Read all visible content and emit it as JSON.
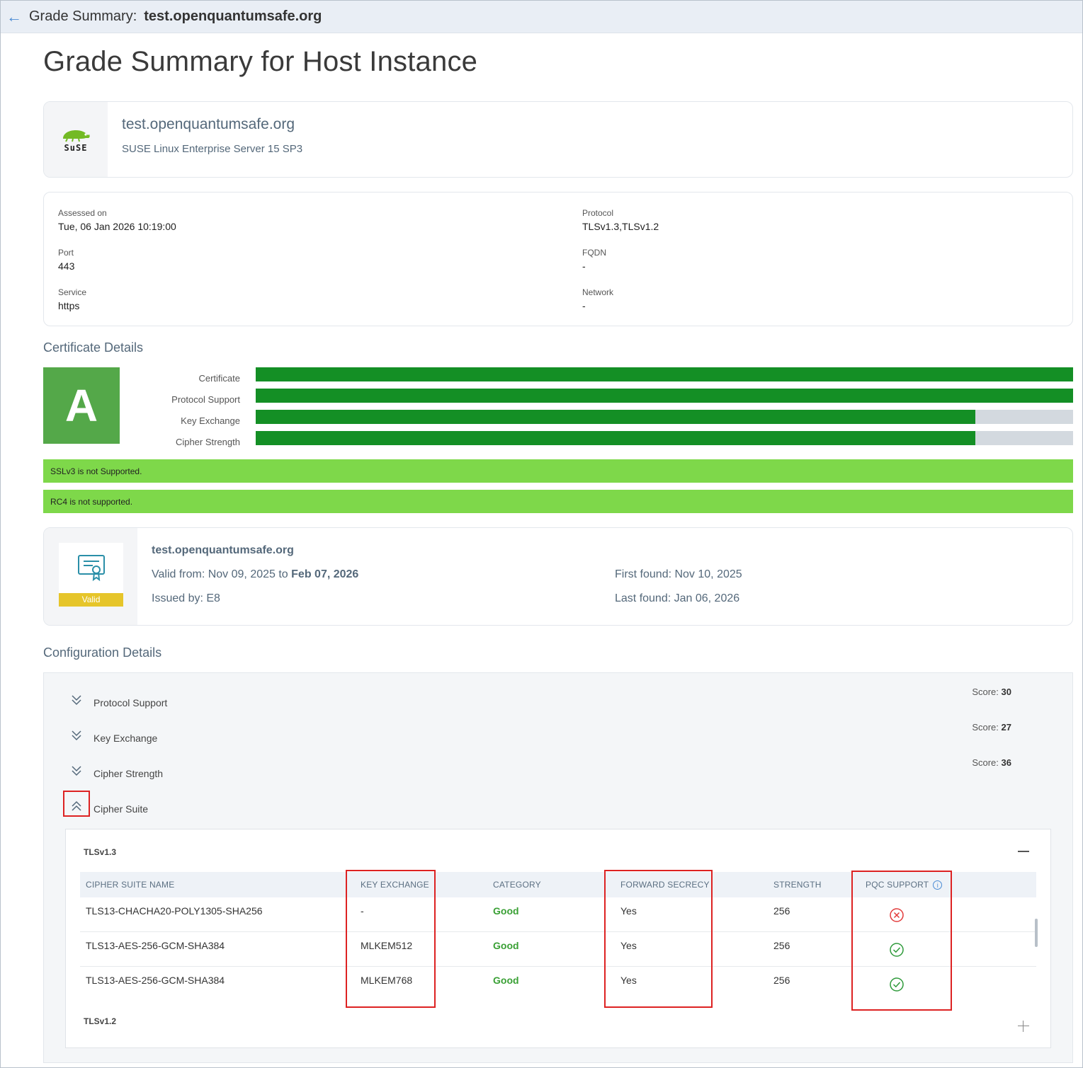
{
  "topbar": {
    "label": "Grade Summary:",
    "host": "test.openquantumsafe.org"
  },
  "page_title": "Grade Summary for Host Instance",
  "host_card": {
    "logo_text": "SuSE",
    "hostname": "test.openquantumsafe.org",
    "os": "SUSE Linux Enterprise Server 15 SP3"
  },
  "assessment": {
    "assessed_on": {
      "label": "Assessed on",
      "value": "Tue, 06 Jan 2026 10:19:00"
    },
    "port": {
      "label": "Port",
      "value": "443"
    },
    "service": {
      "label": "Service",
      "value": "https"
    },
    "protocol": {
      "label": "Protocol",
      "value": "TLSv1.3,TLSv1.2"
    },
    "fqdn": {
      "label": "FQDN",
      "value": "-"
    },
    "network": {
      "label": "Network",
      "value": "-"
    }
  },
  "certificate_details": {
    "title": "Certificate Details",
    "grade": "A",
    "bars": [
      {
        "label": "Certificate",
        "fill": 1.0
      },
      {
        "label": "Protocol Support",
        "fill": 1.0
      },
      {
        "label": "Key Exchange",
        "fill": 0.88
      },
      {
        "label": "Cipher Strength",
        "fill": 0.88
      }
    ],
    "notices": [
      "SSLv3 is not Supported.",
      "RC4 is not supported."
    ],
    "colors": {
      "grade_bg": "#54a849",
      "bar_fill": "#148f25",
      "notice_bg": "#7ed84a",
      "valid_tag": "#e6c52a"
    }
  },
  "cert_card": {
    "status": "Valid",
    "name": "test.openquantumsafe.org",
    "valid_prefix": "Valid from: Nov 09, 2025 to",
    "valid_to": "Feb 07, 2026",
    "issued_by": "Issued by: E8",
    "first_found": "First found: Nov 10, 2025",
    "last_found": "Last found: Jan 06, 2026"
  },
  "configuration": {
    "title": "Configuration Details",
    "items": [
      {
        "label": "Protocol Support",
        "score_label": "Score:",
        "score": "30",
        "expanded": false
      },
      {
        "label": "Key Exchange",
        "score_label": "Score:",
        "score": "27",
        "expanded": false
      },
      {
        "label": "Cipher Strength",
        "score_label": "Score:",
        "score": "36",
        "expanded": false
      },
      {
        "label": "Cipher Suite",
        "expanded": true
      }
    ],
    "cipher_suite": {
      "groups": [
        {
          "name": "TLSv1.3",
          "expanded": true,
          "columns": [
            "CIPHER SUITE NAME",
            "KEY EXCHANGE",
            "CATEGORY",
            "FORWARD SECRECY",
            "STRENGTH",
            "PQC SUPPORT"
          ],
          "rows": [
            {
              "name": "TLS13-CHACHA20-POLY1305-SHA256",
              "key_exchange": "-",
              "category": "Good",
              "forward_secrecy": "Yes",
              "strength": "256",
              "pqc": "no"
            },
            {
              "name": "TLS13-AES-256-GCM-SHA384",
              "key_exchange": "MLKEM512",
              "category": "Good",
              "forward_secrecy": "Yes",
              "strength": "256",
              "pqc": "yes"
            },
            {
              "name": "TLS13-AES-256-GCM-SHA384",
              "key_exchange": "MLKEM768",
              "category": "Good",
              "forward_secrecy": "Yes",
              "strength": "256",
              "pqc": "yes"
            }
          ]
        },
        {
          "name": "TLSv1.2",
          "expanded": false
        }
      ]
    }
  }
}
